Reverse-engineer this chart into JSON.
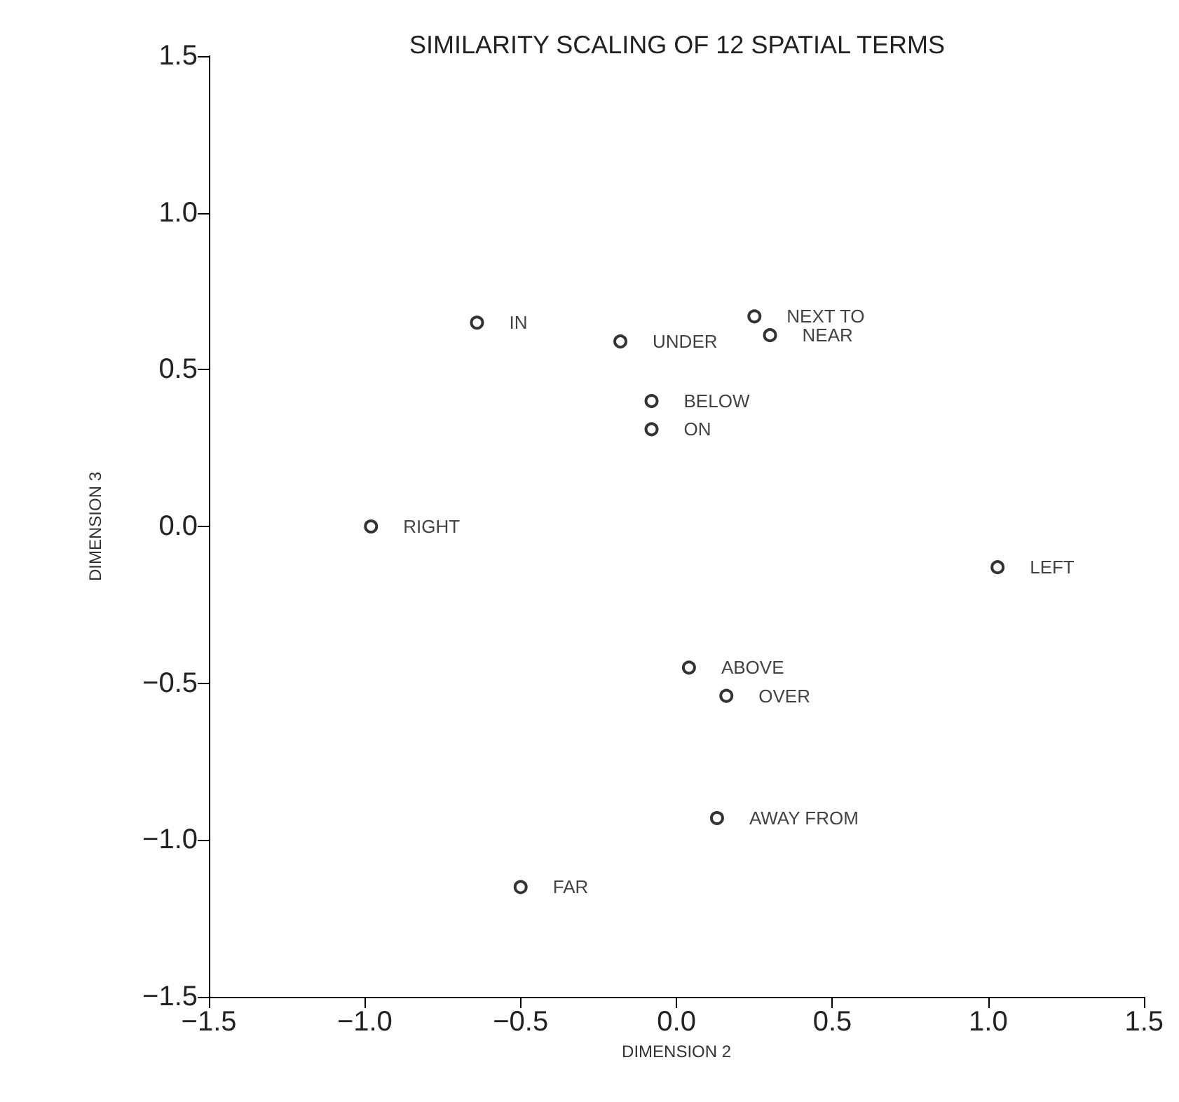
{
  "chart_data": {
    "type": "scatter",
    "title": "SIMILARITY SCALING OF 12 SPATIAL TERMS",
    "xlabel": "DIMENSION 2",
    "ylabel": "DIMENSION 3",
    "x": [
      -0.64,
      -0.18,
      0.25,
      0.3,
      -0.08,
      -0.08,
      -0.98,
      1.03,
      0.04,
      0.16,
      0.13,
      -0.5
    ],
    "values": [
      0.65,
      0.59,
      0.67,
      0.61,
      0.4,
      0.31,
      0.0,
      -0.13,
      -0.45,
      -0.54,
      -0.93,
      -1.15
    ],
    "value_labels": [
      "IN",
      "UNDER",
      "NEXT TO",
      "NEAR",
      "BELOW",
      "ON",
      "RIGHT",
      "LEFT",
      "ABOVE",
      "OVER",
      "AWAY FROM",
      "FAR"
    ],
    "color": "#000000",
    "marker": "circle",
    "grid": false,
    "xlim": [
      -1.5,
      1.5
    ],
    "xticks": [
      {
        "value": -1.5,
        "label": "−1.5"
      },
      {
        "value": -1.0,
        "label": "−1.0"
      },
      {
        "value": -0.5,
        "label": "−0.5"
      },
      {
        "value": 0,
        "label": "0.0"
      },
      {
        "value": 0.5,
        "label": "0.5"
      },
      {
        "value": 1,
        "label": "1.0"
      },
      {
        "value": 1.5,
        "label": "1.5"
      }
    ],
    "ylim": [
      -1.5,
      1.5
    ],
    "yticks": [
      {
        "value": -1.5,
        "label": "−1.5"
      },
      {
        "value": -1.0,
        "label": "−1.0"
      },
      {
        "value": -0.5,
        "label": "−0.5"
      },
      {
        "value": 0,
        "label": "0.0"
      },
      {
        "value": 0.5,
        "label": "0.5"
      },
      {
        "value": 1,
        "label": "1.0"
      },
      {
        "value": 1.5,
        "label": "1.5"
      }
    ]
  }
}
